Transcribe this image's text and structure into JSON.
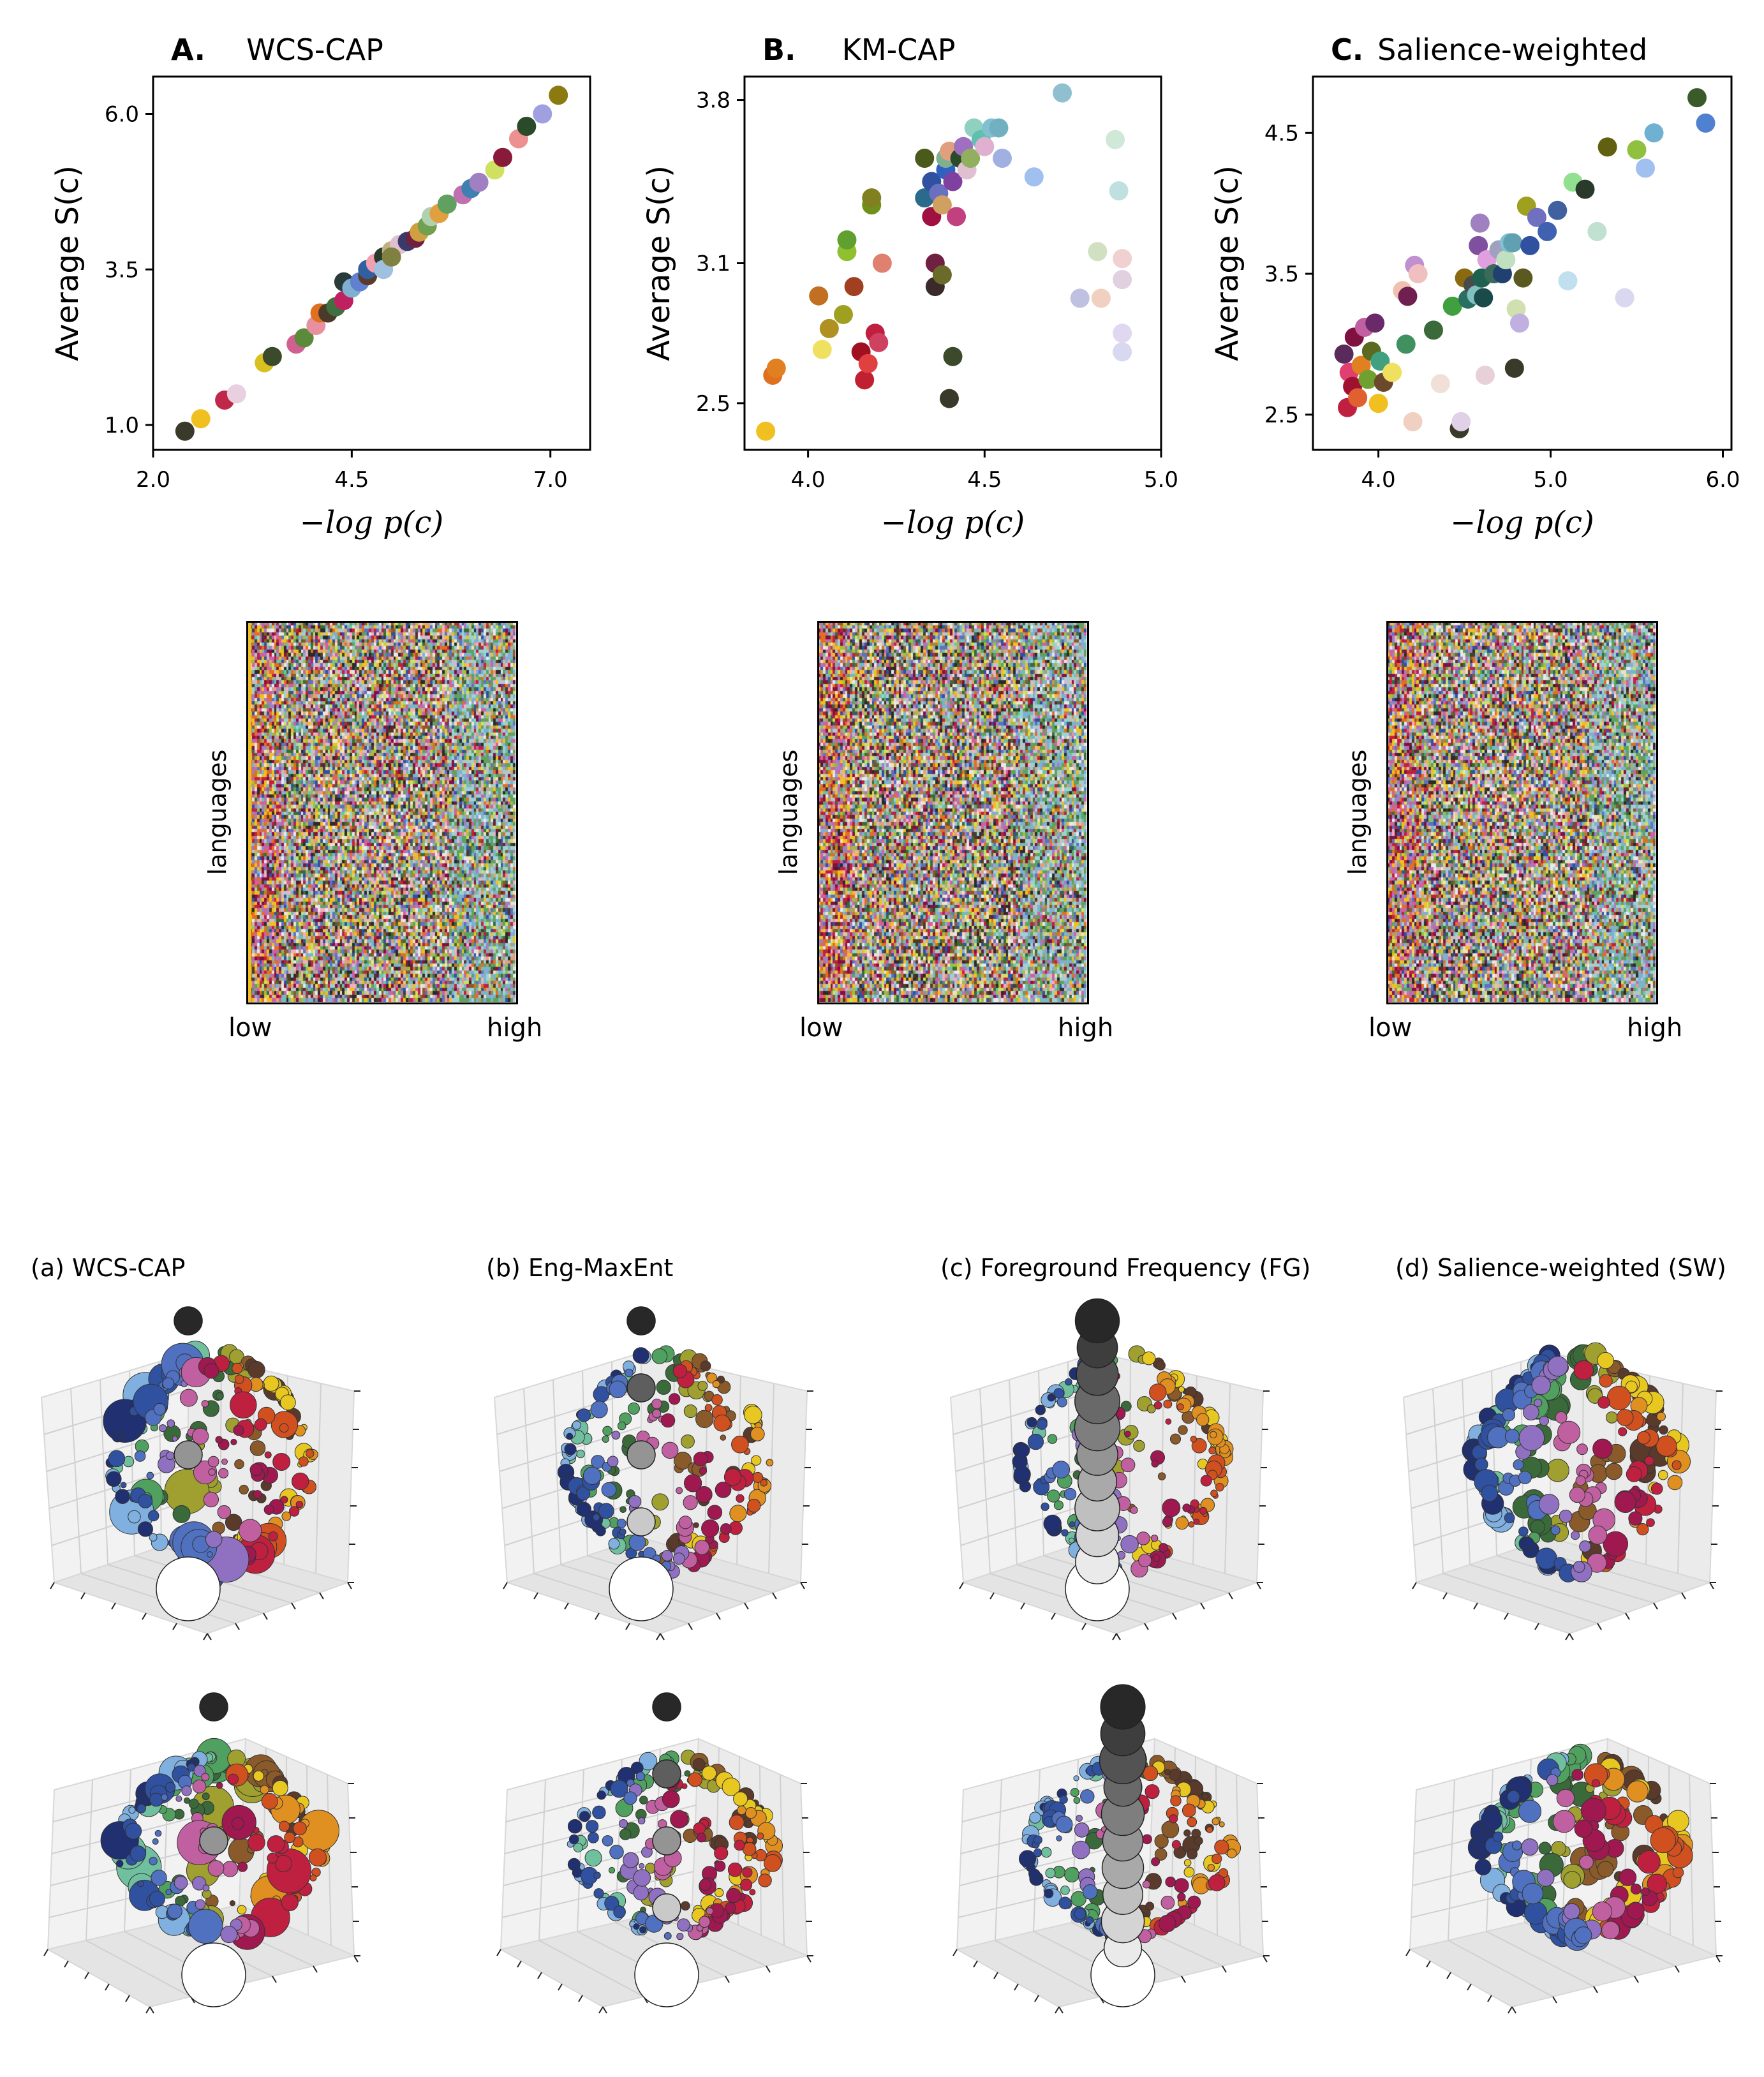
{
  "chart_data": [
    {
      "type": "scatter",
      "letter": "A.",
      "title": "WCS-CAP",
      "xlabel": "−log p(c)",
      "ylabel": "Average S(c)",
      "xlim": [
        2.0,
        7.5
      ],
      "ylim": [
        0.6,
        6.6
      ],
      "xticks": [
        "2.0",
        "4.5",
        "7.0"
      ],
      "xtick_values": [
        2.0,
        4.5,
        7.0
      ],
      "yticks": [
        "1.0",
        "3.5",
        "6.0"
      ],
      "ytick_values": [
        1.0,
        3.5,
        6.0
      ],
      "points": [
        {
          "x": 2.4,
          "y": 0.9,
          "c": "#3a3a2a"
        },
        {
          "x": 2.6,
          "y": 1.1,
          "c": "#f0c020"
        },
        {
          "x": 2.9,
          "y": 1.4,
          "c": "#c0284a"
        },
        {
          "x": 3.05,
          "y": 1.5,
          "c": "#e8d0e0"
        },
        {
          "x": 3.4,
          "y": 2.0,
          "c": "#d8c020"
        },
        {
          "x": 3.5,
          "y": 2.1,
          "c": "#3a4a2a"
        },
        {
          "x": 3.8,
          "y": 2.3,
          "c": "#d06090"
        },
        {
          "x": 3.9,
          "y": 2.4,
          "c": "#5a8a3a"
        },
        {
          "x": 4.05,
          "y": 2.6,
          "c": "#e890a0"
        },
        {
          "x": 4.1,
          "y": 2.8,
          "c": "#e07020"
        },
        {
          "x": 4.2,
          "y": 2.8,
          "c": "#4a3a2a"
        },
        {
          "x": 4.3,
          "y": 2.9,
          "c": "#407040"
        },
        {
          "x": 4.4,
          "y": 3.0,
          "c": "#c02060"
        },
        {
          "x": 4.4,
          "y": 3.3,
          "c": "#2a3a3a"
        },
        {
          "x": 4.5,
          "y": 3.2,
          "c": "#80b0d0"
        },
        {
          "x": 4.6,
          "y": 3.3,
          "c": "#6080d0"
        },
        {
          "x": 4.7,
          "y": 3.4,
          "c": "#5a3a2a"
        },
        {
          "x": 4.7,
          "y": 3.5,
          "c": "#3060a0"
        },
        {
          "x": 4.8,
          "y": 3.6,
          "c": "#f0a0b0"
        },
        {
          "x": 4.9,
          "y": 3.7,
          "c": "#2a3a2a"
        },
        {
          "x": 4.9,
          "y": 3.5,
          "c": "#a0c0e0"
        },
        {
          "x": 5.0,
          "y": 3.8,
          "c": "#c0b080"
        },
        {
          "x": 5.1,
          "y": 3.9,
          "c": "#e0c0d0"
        },
        {
          "x": 5.2,
          "y": 3.95,
          "c": "#3a3a6a"
        },
        {
          "x": 5.3,
          "y": 4.0,
          "c": "#702040"
        },
        {
          "x": 5.35,
          "y": 4.1,
          "c": "#d0a040"
        },
        {
          "x": 5.45,
          "y": 4.2,
          "c": "#70a050"
        },
        {
          "x": 5.5,
          "y": 4.35,
          "c": "#b0d0b0"
        },
        {
          "x": 5.6,
          "y": 4.4,
          "c": "#e0a040"
        },
        {
          "x": 5.7,
          "y": 4.55,
          "c": "#60a060"
        },
        {
          "x": 5.9,
          "y": 4.7,
          "c": "#c070b0"
        },
        {
          "x": 6.0,
          "y": 4.8,
          "c": "#4080b0"
        },
        {
          "x": 6.1,
          "y": 4.9,
          "c": "#a080c0"
        },
        {
          "x": 6.3,
          "y": 5.1,
          "c": "#d0e060"
        },
        {
          "x": 6.4,
          "y": 5.3,
          "c": "#8a1a3a"
        },
        {
          "x": 6.6,
          "y": 5.6,
          "c": "#ec9090"
        },
        {
          "x": 6.7,
          "y": 5.8,
          "c": "#2a4a2a"
        },
        {
          "x": 6.9,
          "y": 6.0,
          "c": "#a0a0e0"
        },
        {
          "x": 7.1,
          "y": 6.3,
          "c": "#8a7a10"
        },
        {
          "x": 5.0,
          "y": 3.7,
          "c": "#808040"
        }
      ]
    },
    {
      "type": "scatter",
      "letter": "B.",
      "title": "KM-CAP",
      "xlabel": "−log p(c)",
      "ylabel": "Average S(c)",
      "xlim": [
        3.82,
        5.0
      ],
      "ylim": [
        2.3,
        3.9
      ],
      "xticks": [
        "4.0",
        "4.5",
        "5.0"
      ],
      "xtick_values": [
        4.0,
        4.5,
        5.0
      ],
      "yticks": [
        "2.5",
        "3.1",
        "3.8"
      ],
      "ytick_values": [
        2.5,
        3.1,
        3.8
      ],
      "points": [
        {
          "x": 3.88,
          "y": 2.38,
          "c": "#f0c020"
        },
        {
          "x": 3.9,
          "y": 2.62,
          "c": "#e07020"
        },
        {
          "x": 3.91,
          "y": 2.65,
          "c": "#e08020"
        },
        {
          "x": 4.03,
          "y": 2.96,
          "c": "#c07020"
        },
        {
          "x": 4.04,
          "y": 2.73,
          "c": "#f0e060"
        },
        {
          "x": 4.06,
          "y": 2.82,
          "c": "#b09020"
        },
        {
          "x": 4.1,
          "y": 2.88,
          "c": "#a0a020"
        },
        {
          "x": 4.11,
          "y": 3.15,
          "c": "#90c030"
        },
        {
          "x": 4.11,
          "y": 3.2,
          "c": "#60a030"
        },
        {
          "x": 4.13,
          "y": 3.0,
          "c": "#a04020"
        },
        {
          "x": 4.15,
          "y": 2.72,
          "c": "#a01020"
        },
        {
          "x": 4.16,
          "y": 2.6,
          "c": "#c02030"
        },
        {
          "x": 4.17,
          "y": 2.67,
          "c": "#e04040"
        },
        {
          "x": 4.18,
          "y": 3.35,
          "c": "#70901a"
        },
        {
          "x": 4.18,
          "y": 3.38,
          "c": "#808020"
        },
        {
          "x": 4.19,
          "y": 2.8,
          "c": "#c02040"
        },
        {
          "x": 4.2,
          "y": 2.76,
          "c": "#d04060"
        },
        {
          "x": 4.21,
          "y": 3.1,
          "c": "#e08070"
        },
        {
          "x": 4.33,
          "y": 3.55,
          "c": "#4a5a1a"
        },
        {
          "x": 4.33,
          "y": 3.38,
          "c": "#2a6a8a"
        },
        {
          "x": 4.35,
          "y": 3.3,
          "c": "#a01040"
        },
        {
          "x": 4.35,
          "y": 3.45,
          "c": "#3050a0"
        },
        {
          "x": 4.36,
          "y": 3.1,
          "c": "#702040"
        },
        {
          "x": 4.36,
          "y": 3.0,
          "c": "#3a2a2a"
        },
        {
          "x": 4.37,
          "y": 3.4,
          "c": "#6a70c0"
        },
        {
          "x": 4.38,
          "y": 3.35,
          "c": "#d0a060"
        },
        {
          "x": 4.38,
          "y": 3.05,
          "c": "#6a6a2a"
        },
        {
          "x": 4.39,
          "y": 3.5,
          "c": "#3060c0"
        },
        {
          "x": 4.39,
          "y": 3.55,
          "c": "#80b090"
        },
        {
          "x": 4.4,
          "y": 3.58,
          "c": "#e0a080"
        },
        {
          "x": 4.4,
          "y": 2.52,
          "c": "#3a3a2a"
        },
        {
          "x": 4.41,
          "y": 2.7,
          "c": "#3a4a2a"
        },
        {
          "x": 4.41,
          "y": 3.45,
          "c": "#8040a0"
        },
        {
          "x": 4.42,
          "y": 3.3,
          "c": "#c04080"
        },
        {
          "x": 4.43,
          "y": 3.55,
          "c": "#2a4a2a"
        },
        {
          "x": 4.44,
          "y": 3.6,
          "c": "#a070c0"
        },
        {
          "x": 4.45,
          "y": 3.5,
          "c": "#e0c0d0"
        },
        {
          "x": 4.46,
          "y": 3.55,
          "c": "#90b060"
        },
        {
          "x": 4.47,
          "y": 3.68,
          "c": "#90d0c0"
        },
        {
          "x": 4.49,
          "y": 3.63,
          "c": "#60c0b0"
        },
        {
          "x": 4.5,
          "y": 3.6,
          "c": "#e0b0d0"
        },
        {
          "x": 4.52,
          "y": 3.68,
          "c": "#80c0d0"
        },
        {
          "x": 4.54,
          "y": 3.68,
          "c": "#70b0c0"
        },
        {
          "x": 4.55,
          "y": 3.55,
          "c": "#a0b0e0"
        },
        {
          "x": 4.64,
          "y": 3.47,
          "c": "#a0c0f0"
        },
        {
          "x": 4.72,
          "y": 3.83,
          "c": "#90c0d0"
        },
        {
          "x": 4.77,
          "y": 2.95,
          "c": "#c0c0e0"
        },
        {
          "x": 4.82,
          "y": 3.15,
          "c": "#d0e0c0"
        },
        {
          "x": 4.83,
          "y": 2.95,
          "c": "#f0d0c0"
        },
        {
          "x": 4.87,
          "y": 3.63,
          "c": "#d0e8d8"
        },
        {
          "x": 4.88,
          "y": 3.41,
          "c": "#c0e0e0"
        },
        {
          "x": 4.89,
          "y": 3.12,
          "c": "#f0d0d0"
        },
        {
          "x": 4.89,
          "y": 3.03,
          "c": "#e0d0e0"
        },
        {
          "x": 4.89,
          "y": 2.8,
          "c": "#e0d8f0"
        },
        {
          "x": 4.89,
          "y": 2.72,
          "c": "#d8d8f0"
        }
      ]
    },
    {
      "type": "scatter",
      "letter": "C.",
      "title": "Salience-weighted",
      "xlabel": "−log p(c)",
      "ylabel": "Average S(c)",
      "xlim": [
        3.62,
        6.05
      ],
      "ylim": [
        2.25,
        4.9
      ],
      "xticks": [
        "4.0",
        "5.0",
        "6.0"
      ],
      "xtick_values": [
        4.0,
        5.0,
        6.0
      ],
      "yticks": [
        "2.5",
        "3.5",
        "4.5"
      ],
      "ytick_values": [
        2.5,
        3.5,
        4.5
      ],
      "points": [
        {
          "x": 3.8,
          "y": 2.93,
          "c": "#5a2a5a"
        },
        {
          "x": 3.82,
          "y": 2.55,
          "c": "#c02040"
        },
        {
          "x": 3.83,
          "y": 2.8,
          "c": "#e04070"
        },
        {
          "x": 3.85,
          "y": 2.7,
          "c": "#a01030"
        },
        {
          "x": 3.86,
          "y": 3.05,
          "c": "#801040"
        },
        {
          "x": 3.88,
          "y": 2.62,
          "c": "#e06030"
        },
        {
          "x": 3.9,
          "y": 2.85,
          "c": "#e08020"
        },
        {
          "x": 3.92,
          "y": 3.12,
          "c": "#c060a0"
        },
        {
          "x": 3.94,
          "y": 2.75,
          "c": "#70a030"
        },
        {
          "x": 3.96,
          "y": 2.95,
          "c": "#5a6a20"
        },
        {
          "x": 3.98,
          "y": 3.15,
          "c": "#6a2a6a"
        },
        {
          "x": 4.0,
          "y": 2.58,
          "c": "#f0c020"
        },
        {
          "x": 4.01,
          "y": 2.88,
          "c": "#40a080"
        },
        {
          "x": 4.03,
          "y": 2.73,
          "c": "#6a4a2a"
        },
        {
          "x": 4.08,
          "y": 2.8,
          "c": "#f0e060"
        },
        {
          "x": 4.14,
          "y": 3.38,
          "c": "#f0c0b0"
        },
        {
          "x": 4.16,
          "y": 3.0,
          "c": "#409060"
        },
        {
          "x": 4.17,
          "y": 3.34,
          "c": "#702050"
        },
        {
          "x": 4.2,
          "y": 2.45,
          "c": "#f0d0c0"
        },
        {
          "x": 4.21,
          "y": 3.56,
          "c": "#c090d0"
        },
        {
          "x": 4.23,
          "y": 3.5,
          "c": "#f0c0c0"
        },
        {
          "x": 4.32,
          "y": 3.1,
          "c": "#3a6a3a"
        },
        {
          "x": 4.36,
          "y": 2.72,
          "c": "#f0e0d8"
        },
        {
          "x": 4.43,
          "y": 3.27,
          "c": "#40a040"
        },
        {
          "x": 4.47,
          "y": 2.4,
          "c": "#3a3a2a"
        },
        {
          "x": 4.48,
          "y": 2.45,
          "c": "#e0d0e8"
        },
        {
          "x": 4.5,
          "y": 3.47,
          "c": "#8a6a10"
        },
        {
          "x": 4.52,
          "y": 3.32,
          "c": "#2a7060"
        },
        {
          "x": 4.55,
          "y": 3.42,
          "c": "#4a4a4a"
        },
        {
          "x": 4.57,
          "y": 3.35,
          "c": "#80c0c0"
        },
        {
          "x": 4.58,
          "y": 3.7,
          "c": "#8050a0"
        },
        {
          "x": 4.59,
          "y": 3.86,
          "c": "#a080c0"
        },
        {
          "x": 4.6,
          "y": 3.47,
          "c": "#206050"
        },
        {
          "x": 4.61,
          "y": 3.33,
          "c": "#1a4a4a"
        },
        {
          "x": 4.62,
          "y": 2.78,
          "c": "#e8d0d8"
        },
        {
          "x": 4.63,
          "y": 3.6,
          "c": "#e0a0e0"
        },
        {
          "x": 4.67,
          "y": 3.5,
          "c": "#3a6a5a"
        },
        {
          "x": 4.7,
          "y": 3.67,
          "c": "#a0a0c0"
        },
        {
          "x": 4.72,
          "y": 3.5,
          "c": "#204070"
        },
        {
          "x": 4.74,
          "y": 3.6,
          "c": "#c0e0c0"
        },
        {
          "x": 4.76,
          "y": 3.72,
          "c": "#80c0d0"
        },
        {
          "x": 4.78,
          "y": 3.72,
          "c": "#60a0b0"
        },
        {
          "x": 4.79,
          "y": 2.83,
          "c": "#3a3a2a"
        },
        {
          "x": 4.8,
          "y": 3.25,
          "c": "#d0e0b0"
        },
        {
          "x": 4.82,
          "y": 3.15,
          "c": "#c0b0e0"
        },
        {
          "x": 4.84,
          "y": 3.47,
          "c": "#5a5a20"
        },
        {
          "x": 4.86,
          "y": 3.98,
          "c": "#a0a020"
        },
        {
          "x": 4.88,
          "y": 3.7,
          "c": "#3050a0"
        },
        {
          "x": 4.92,
          "y": 3.9,
          "c": "#7070c0"
        },
        {
          "x": 4.98,
          "y": 3.8,
          "c": "#4060b0"
        },
        {
          "x": 5.04,
          "y": 3.95,
          "c": "#4060a0"
        },
        {
          "x": 5.1,
          "y": 3.45,
          "c": "#c0e0f0"
        },
        {
          "x": 5.13,
          "y": 4.15,
          "c": "#90e090"
        },
        {
          "x": 5.2,
          "y": 4.1,
          "c": "#2a3a2a"
        },
        {
          "x": 5.27,
          "y": 3.8,
          "c": "#c0e0d0"
        },
        {
          "x": 5.33,
          "y": 4.4,
          "c": "#606010"
        },
        {
          "x": 5.43,
          "y": 3.33,
          "c": "#d8d8f0"
        },
        {
          "x": 5.5,
          "y": 4.38,
          "c": "#90c040"
        },
        {
          "x": 5.55,
          "y": 4.25,
          "c": "#a0c0f0"
        },
        {
          "x": 5.6,
          "y": 4.5,
          "c": "#70b0d0"
        },
        {
          "x": 5.85,
          "y": 4.75,
          "c": "#3a5a2a"
        },
        {
          "x": 5.9,
          "y": 4.57,
          "c": "#5080d0"
        }
      ]
    }
  ],
  "heatmaps": [
    {
      "ylabel": "languages",
      "x_low": "low",
      "x_high": "high",
      "mode": "wcs"
    },
    {
      "ylabel": "languages",
      "x_low": "low",
      "x_high": "high",
      "mode": "km"
    },
    {
      "ylabel": "languages",
      "x_low": "low",
      "x_high": "high",
      "mode": "sw"
    }
  ],
  "heatmap_palette": [
    "#f0c020",
    "#e07020",
    "#c02040",
    "#801040",
    "#d060a0",
    "#a080c0",
    "#6070c0",
    "#3050a0",
    "#80b0d0",
    "#a0d0d0",
    "#60a060",
    "#3a6a3a",
    "#a0c040",
    "#d0e060",
    "#f0e0c0",
    "#e0a080",
    "#8a5a2a",
    "#4a3a2a",
    "#2a2a2a",
    "#e8e8f0",
    "#c0c0c0",
    "#f0b0c0",
    "#70c0b0",
    "#b0a060"
  ],
  "three_d_panels": [
    {
      "label": "(a) WCS-CAP",
      "style": "wcs"
    },
    {
      "label": "(b) Eng-MaxEnt",
      "style": "eng"
    },
    {
      "label": "(c) Foreground Frequency (FG)",
      "style": "fg"
    },
    {
      "label": "(d) Salience-weighted (SW)",
      "style": "sw"
    }
  ]
}
